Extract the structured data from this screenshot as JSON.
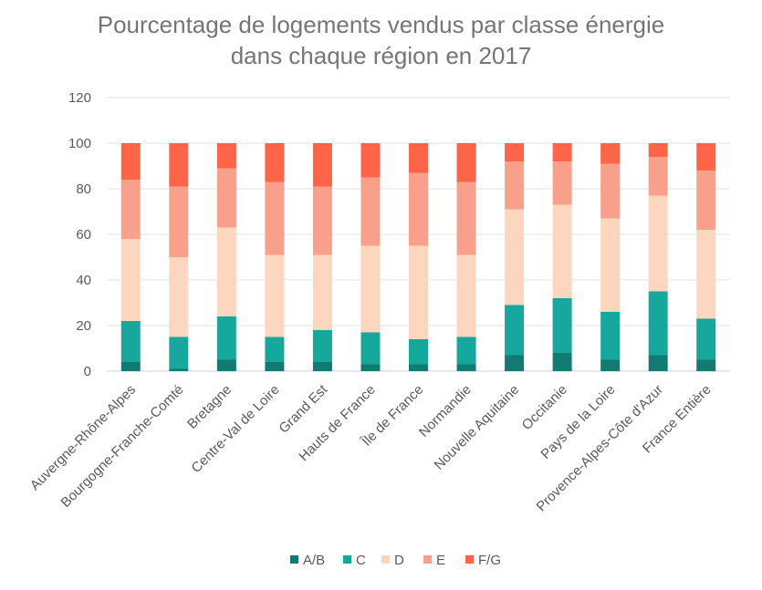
{
  "chart_data": {
    "type": "bar",
    "stacked": true,
    "title": "Pourcentage de logements vendus par classe énergie",
    "title_line2": "dans chaque région en 2017",
    "ylim": [
      0,
      120
    ],
    "yticks": [
      "0",
      "20",
      "40",
      "60",
      "80",
      "100",
      "120"
    ],
    "grid": true,
    "legend_position": "bottom",
    "categories": [
      "Auvergne-Rhône-Alpes",
      "Bourgogne-Franche-Comté",
      "Bretagne",
      "Centre-Val de Loire",
      "Grand Est",
      "Hauts de France",
      "Île de France",
      "Normandie",
      "Nouvelle Aquitaine",
      "Occitanie",
      "Pays de la Loire",
      "Provence-Alpes-Côte d'Azur",
      "France Entière"
    ],
    "series": [
      {
        "name": "A/B",
        "color": "#137a72",
        "values": [
          4,
          1,
          5,
          4,
          4,
          3,
          3,
          3,
          7,
          8,
          5,
          7,
          5
        ]
      },
      {
        "name": "C",
        "color": "#16a89c",
        "values": [
          18,
          14,
          19,
          11,
          14,
          14,
          11,
          12,
          22,
          24,
          21,
          28,
          18
        ]
      },
      {
        "name": "D",
        "color": "#fdd6c0",
        "values": [
          36,
          35,
          39,
          36,
          33,
          38,
          41,
          36,
          42,
          41,
          41,
          42,
          39
        ]
      },
      {
        "name": "E",
        "color": "#f9a08c",
        "values": [
          26,
          31,
          26,
          32,
          30,
          30,
          32,
          32,
          21,
          19,
          24,
          17,
          26
        ]
      },
      {
        "name": "F/G",
        "color": "#fd6448",
        "values": [
          16,
          19,
          11,
          17,
          19,
          15,
          13,
          17,
          8,
          8,
          9,
          6,
          12
        ]
      }
    ]
  }
}
